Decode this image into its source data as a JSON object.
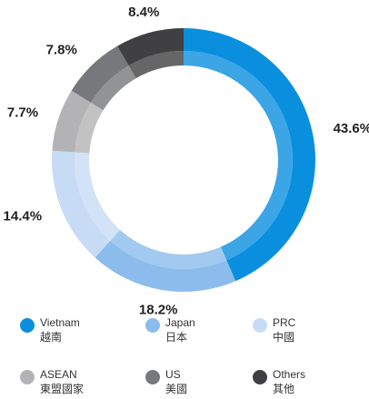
{
  "chart_data": {
    "type": "donut",
    "categories": [
      "Vietnam",
      "Japan",
      "PRC",
      "ASEAN",
      "US",
      "Others"
    ],
    "categories_zh": [
      "越南",
      "日本",
      "中國",
      "東盟國家",
      "美國",
      "其他"
    ],
    "values": [
      43.6,
      18.2,
      14.4,
      7.7,
      7.8,
      8.4
    ],
    "value_labels": [
      "43.6%",
      "18.2%",
      "14.4%",
      "7.7%",
      "7.8%",
      "8.4%"
    ],
    "colors": [
      "#0a8fdf",
      "#8bbcec",
      "#c7dbf5",
      "#b3b3b5",
      "#77787b",
      "#404042"
    ]
  }
}
